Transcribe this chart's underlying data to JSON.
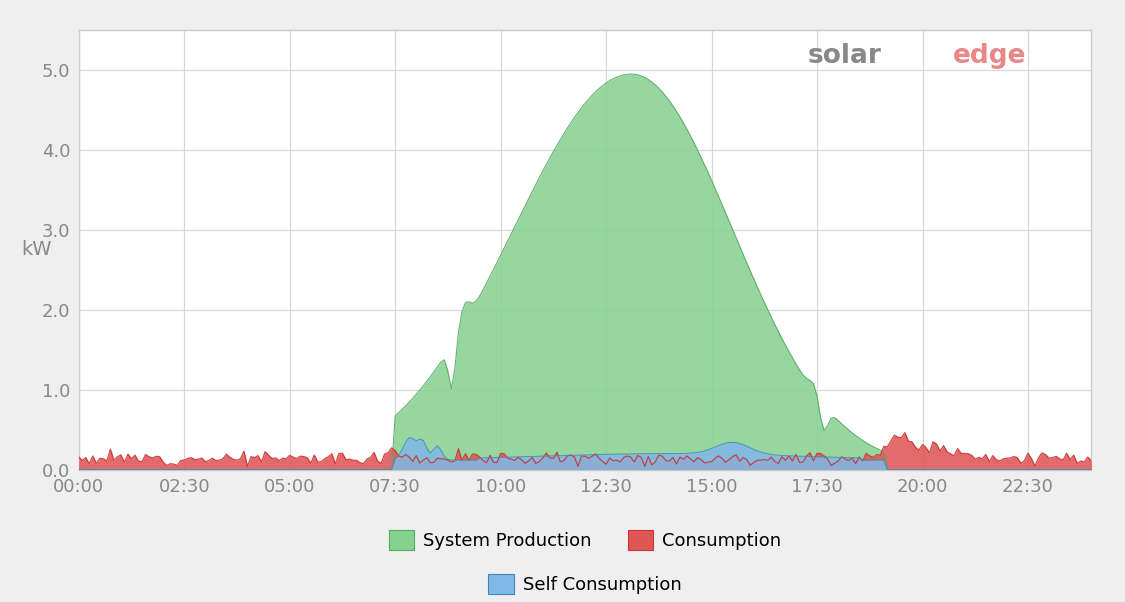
{
  "background_color": "#efefef",
  "plot_bg_color": "#ffffff",
  "grid_color": "#d8d8d8",
  "border_color": "#cccccc",
  "ylabel": "kW",
  "ylim": [
    0.0,
    5.5
  ],
  "yticks": [
    0.0,
    1.0,
    2.0,
    3.0,
    4.0,
    5.0
  ],
  "xtick_labels": [
    "00:00",
    "02:30",
    "05:00",
    "07:30",
    "10:00",
    "12:30",
    "15:00",
    "17:30",
    "20:00",
    "22:30"
  ],
  "xtick_hours": [
    0,
    2.5,
    5,
    7.5,
    10,
    12.5,
    15,
    17.5,
    20,
    22.5
  ],
  "production_color": "#85d18e",
  "production_alpha": 0.85,
  "consumption_color": "#e05555",
  "consumption_alpha": 0.88,
  "self_consumption_color": "#80b8e8",
  "self_consumption_alpha": 0.88,
  "legend_labels": [
    "System Production",
    "Consumption",
    "Self Consumption"
  ],
  "tick_color": "#888888",
  "logo_solar_color": "#888888",
  "logo_edge_color": "#e88888"
}
